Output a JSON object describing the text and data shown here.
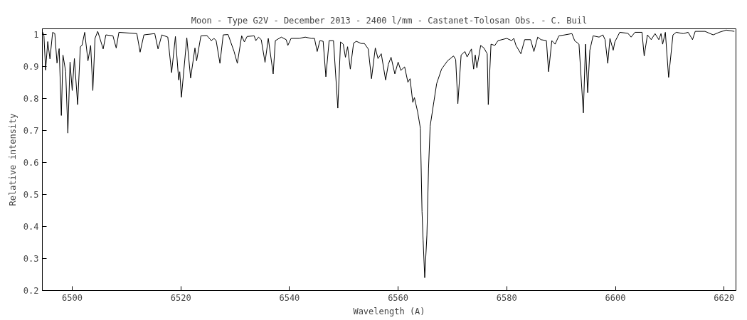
{
  "chart_data": {
    "type": "line",
    "title": "Moon - Type G2V - December 2013 - 2400 l/mm - Castanet-Tolosan Obs. - C. Buil",
    "xlabel": "Wavelength (A)",
    "ylabel": "Relative intensity",
    "color": "#000000",
    "xlim": [
      6494.5,
      6622.2
    ],
    "ylim": [
      0.2,
      1.018
    ],
    "xticks": [
      6500,
      6520,
      6540,
      6560,
      6580,
      6600,
      6620
    ],
    "yticks": [
      0.2,
      0.3,
      0.4,
      0.5,
      0.6,
      0.7,
      0.8,
      0.9,
      1
    ],
    "x": [
      6494.6,
      6494.8,
      6495.1,
      6495.5,
      6495.9,
      6496.4,
      6496.8,
      6497.2,
      6497.6,
      6498.0,
      6498.3,
      6498.8,
      6499.2,
      6499.6,
      6500.0,
      6500.4,
      6501.0,
      6501.5,
      6501.8,
      6502.3,
      6502.9,
      6503.4,
      6503.8,
      6504.2,
      6504.7,
      6505.7,
      6506.2,
      6507.5,
      6508.1,
      6508.6,
      6511.9,
      6512.5,
      6513.2,
      6515.2,
      6515.8,
      6516.5,
      6517.6,
      6518.3,
      6519.0,
      6519.6,
      6519.8,
      6520.1,
      6521.1,
      6521.8,
      6522.6,
      6522.9,
      6523.7,
      6524.8,
      6525.6,
      6526.1,
      6526.5,
      6527.2,
      6527.8,
      6528.7,
      6529.8,
      6530.4,
      6531.2,
      6531.7,
      6532.2,
      6533.5,
      6533.8,
      6534.3,
      6534.8,
      6535.5,
      6536.1,
      6537.0,
      6537.4,
      6538.5,
      6539.4,
      6539.7,
      6540.3,
      6541.8,
      6542.9,
      6544.0,
      6544.6,
      6545.1,
      6545.6,
      6546.2,
      6546.7,
      6547.3,
      6548.1,
      6548.9,
      6549.4,
      6549.9,
      6550.3,
      6550.7,
      6551.2,
      6551.8,
      6552.3,
      6553.2,
      6553.8,
      6554.5,
      6555.1,
      6555.8,
      6556.3,
      6556.9,
      6557.7,
      6558.2,
      6558.7,
      6559.4,
      6560.0,
      6560.5,
      6561.2,
      6561.8,
      6562.2,
      6562.7,
      6563.0,
      6563.6,
      6564.1,
      6564.4,
      6564.6,
      6564.9,
      6565.3,
      6565.6,
      6565.9,
      6566.6,
      6567.1,
      6568.0,
      6569.1,
      6570.2,
      6570.6,
      6571.0,
      6571.6,
      6572.3,
      6572.7,
      6573.5,
      6573.9,
      6574.2,
      6574.5,
      6575.2,
      6575.8,
      6576.4,
      6576.6,
      6577.1,
      6577.8,
      6578.4,
      6580.0,
      6580.9,
      6581.3,
      6581.7,
      6582.6,
      6583.3,
      6584.4,
      6585.0,
      6585.7,
      6586.3,
      6587.3,
      6587.7,
      6588.3,
      6588.9,
      6589.6,
      6590.7,
      6592.0,
      6592.5,
      6593.3,
      6594.1,
      6594.5,
      6594.9,
      6595.3,
      6595.9,
      6597.0,
      6597.7,
      6598.1,
      6598.6,
      6599.0,
      6599.6,
      6599.9,
      6600.8,
      6602.3,
      6602.9,
      6603.6,
      6604.9,
      6605.3,
      6605.9,
      6606.6,
      6607.3,
      6608.0,
      6608.4,
      6608.7,
      6609.2,
      6609.8,
      6610.6,
      6611.2,
      6612.5,
      6613.4,
      6614.2,
      6614.7,
      6616.5,
      6618.0,
      6619.1,
      6620.4,
      6621.9
    ],
    "values": [
      1.007,
      0.996,
      0.889,
      0.978,
      0.924,
      1.007,
      1.003,
      0.911,
      0.956,
      0.747,
      0.936,
      0.884,
      0.692,
      0.914,
      0.825,
      0.925,
      0.781,
      0.962,
      0.966,
      1.007,
      0.918,
      0.966,
      0.825,
      0.988,
      1.01,
      0.955,
      0.999,
      0.996,
      0.958,
      1.007,
      1.003,
      0.945,
      0.999,
      1.003,
      0.955,
      0.999,
      0.992,
      0.881,
      0.994,
      0.858,
      0.884,
      0.804,
      0.99,
      0.864,
      0.958,
      0.918,
      0.996,
      0.997,
      0.981,
      0.988,
      0.981,
      0.91,
      0.999,
      1.0,
      0.947,
      0.91,
      0.996,
      0.977,
      0.994,
      0.996,
      0.981,
      0.992,
      0.984,
      0.913,
      0.988,
      0.877,
      0.981,
      0.992,
      0.984,
      0.966,
      0.988,
      0.988,
      0.992,
      0.988,
      0.988,
      0.947,
      0.981,
      0.979,
      0.868,
      0.981,
      0.981,
      0.77,
      0.977,
      0.97,
      0.929,
      0.962,
      0.892,
      0.973,
      0.979,
      0.972,
      0.972,
      0.955,
      0.862,
      0.958,
      0.925,
      0.94,
      0.858,
      0.907,
      0.929,
      0.877,
      0.914,
      0.888,
      0.899,
      0.851,
      0.862,
      0.788,
      0.803,
      0.758,
      0.707,
      0.447,
      0.358,
      0.24,
      0.373,
      0.581,
      0.714,
      0.792,
      0.847,
      0.892,
      0.918,
      0.933,
      0.922,
      0.784,
      0.936,
      0.947,
      0.93,
      0.955,
      0.892,
      0.936,
      0.896,
      0.966,
      0.958,
      0.94,
      0.781,
      0.97,
      0.966,
      0.981,
      0.988,
      0.981,
      0.988,
      0.966,
      0.94,
      0.984,
      0.984,
      0.947,
      0.992,
      0.984,
      0.981,
      0.884,
      0.981,
      0.97,
      0.996,
      0.999,
      1.003,
      0.981,
      0.97,
      0.755,
      0.97,
      0.818,
      0.951,
      0.996,
      0.992,
      0.999,
      0.984,
      0.91,
      0.988,
      0.951,
      0.977,
      1.007,
      1.004,
      0.992,
      1.007,
      1.007,
      0.933,
      0.999,
      0.984,
      1.003,
      0.984,
      1.003,
      0.97,
      1.007,
      0.866,
      0.999,
      1.007,
      1.003,
      1.007,
      0.984,
      1.01,
      1.01,
      0.999,
      1.007,
      1.014,
      1.01
    ]
  }
}
